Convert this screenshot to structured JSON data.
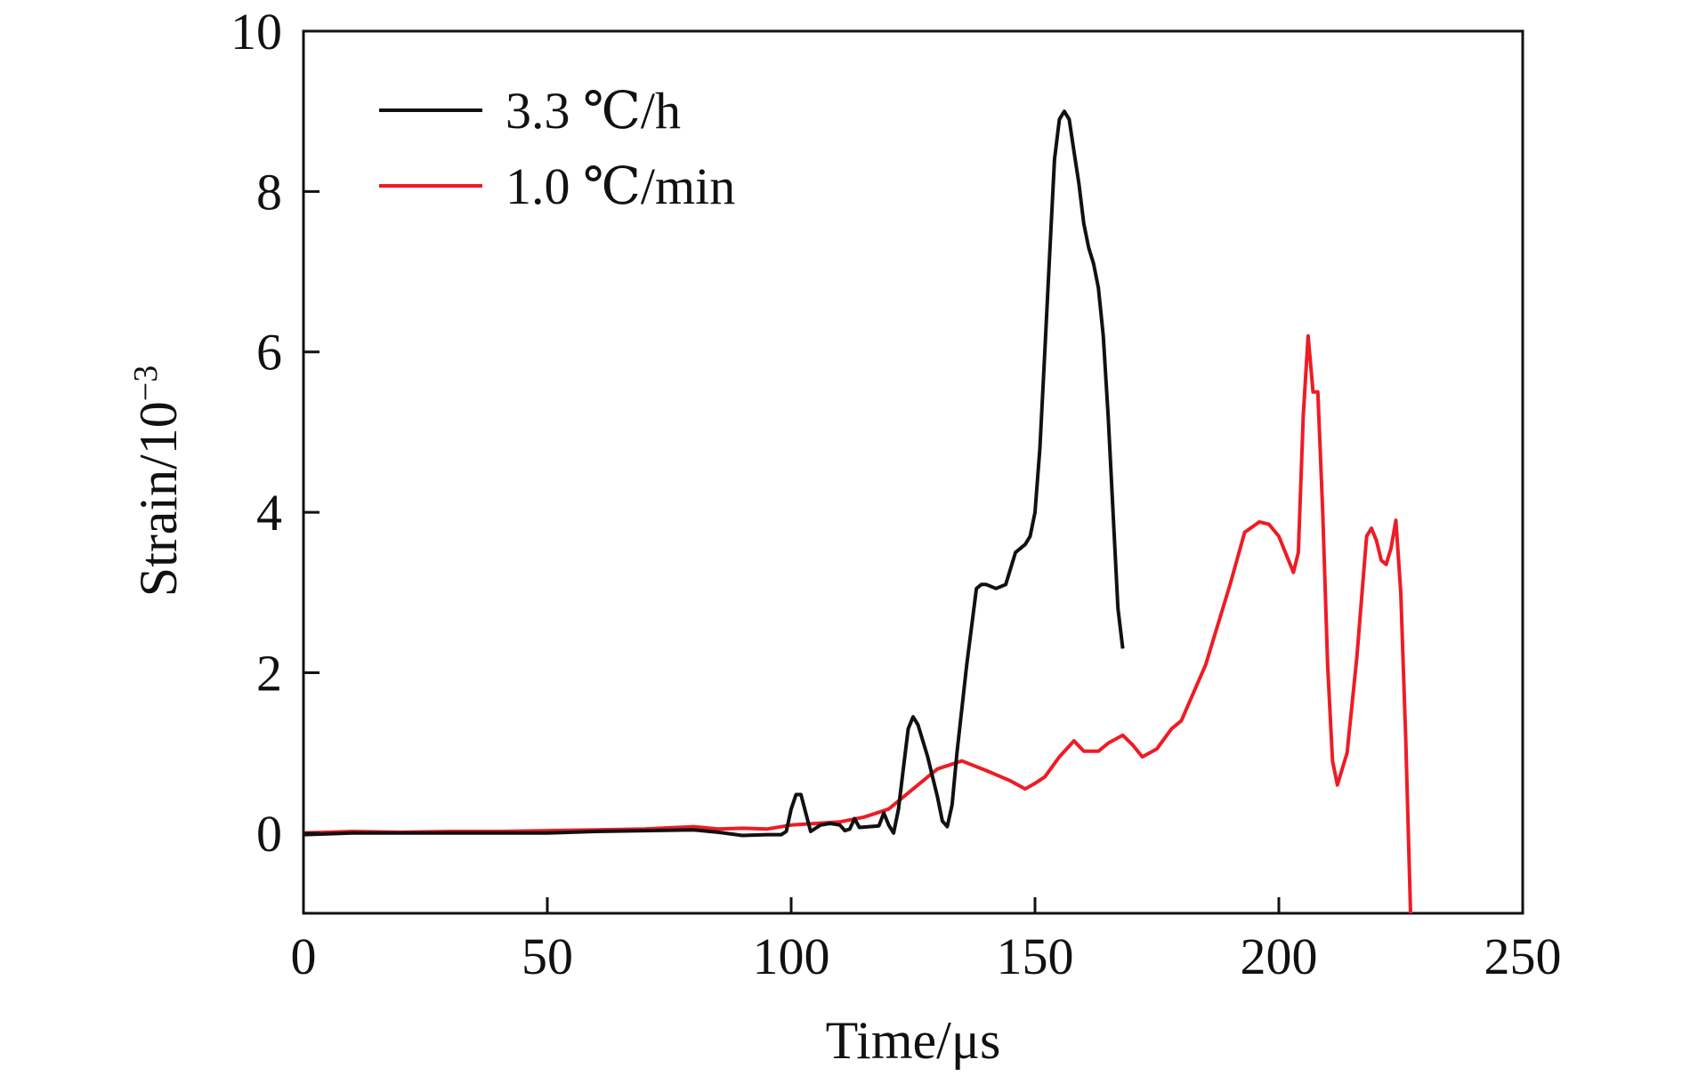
{
  "chart_data": {
    "type": "line",
    "title": "",
    "xlabel": "Time/μs",
    "ylabel": "Strain/10",
    "ylabel_exponent": "−3",
    "xlim": [
      0,
      250
    ],
    "ylim": [
      -1,
      10
    ],
    "xticks": [
      0,
      50,
      100,
      150,
      200,
      250
    ],
    "yticks": [
      0,
      2,
      4,
      6,
      8,
      10
    ],
    "grid": false,
    "legend_position": "top-left",
    "series": [
      {
        "name": "3.3 ℃/h",
        "color": "#111111",
        "x": [
          0,
          10,
          20,
          30,
          40,
          50,
          60,
          70,
          80,
          85,
          90,
          95,
          98,
          99,
          100,
          101,
          102,
          103,
          104,
          106,
          108,
          110,
          111,
          112,
          113,
          114,
          116,
          118,
          119,
          120,
          121,
          122,
          123,
          124,
          125,
          126,
          128,
          130,
          131,
          132,
          133,
          134,
          136,
          138,
          139,
          140,
          142,
          144,
          146,
          148,
          149,
          150,
          151,
          152,
          153,
          154,
          155,
          156,
          157,
          158,
          159,
          160,
          161,
          162,
          163,
          164,
          165,
          166,
          167,
          168
        ],
        "y": [
          -0.02,
          0.0,
          0.0,
          0.0,
          0.0,
          0.0,
          0.02,
          0.03,
          0.04,
          0.01,
          -0.03,
          -0.02,
          -0.02,
          0.02,
          0.3,
          0.48,
          0.48,
          0.25,
          0.02,
          0.1,
          0.12,
          0.1,
          0.03,
          0.05,
          0.18,
          0.07,
          0.08,
          0.09,
          0.25,
          0.1,
          0.0,
          0.3,
          0.8,
          1.3,
          1.45,
          1.35,
          0.95,
          0.45,
          0.15,
          0.08,
          0.35,
          1.0,
          2.1,
          3.05,
          3.1,
          3.1,
          3.05,
          3.1,
          3.5,
          3.6,
          3.7,
          4.0,
          4.8,
          6.0,
          7.2,
          8.4,
          8.9,
          9.0,
          8.9,
          8.5,
          8.1,
          7.6,
          7.3,
          7.1,
          6.8,
          6.2,
          5.2,
          4.0,
          2.8,
          2.3
        ]
      },
      {
        "name": "1.0 ℃/min",
        "color": "#ee1c25",
        "x": [
          0,
          10,
          20,
          30,
          40,
          50,
          60,
          70,
          80,
          85,
          90,
          95,
          100,
          105,
          110,
          115,
          120,
          125,
          130,
          135,
          140,
          145,
          148,
          150,
          152,
          155,
          158,
          160,
          163,
          165,
          168,
          170,
          172,
          175,
          178,
          180,
          185,
          190,
          193,
          196,
          198,
          200,
          203,
          204,
          205,
          206,
          207,
          208,
          209,
          210,
          211,
          212,
          213,
          214,
          216,
          218,
          219,
          220,
          221,
          222,
          223,
          224,
          225,
          226,
          227
        ],
        "y": [
          0.0,
          0.02,
          0.01,
          0.02,
          0.02,
          0.03,
          0.04,
          0.05,
          0.08,
          0.05,
          0.06,
          0.05,
          0.1,
          0.12,
          0.14,
          0.2,
          0.3,
          0.55,
          0.8,
          0.9,
          0.78,
          0.65,
          0.55,
          0.62,
          0.7,
          0.95,
          1.15,
          1.02,
          1.02,
          1.12,
          1.22,
          1.1,
          0.95,
          1.05,
          1.3,
          1.4,
          2.1,
          3.1,
          3.75,
          3.88,
          3.85,
          3.7,
          3.25,
          3.5,
          5.2,
          6.2,
          5.5,
          5.5,
          4.0,
          2.1,
          0.9,
          0.6,
          0.8,
          1.0,
          2.2,
          3.7,
          3.8,
          3.65,
          3.4,
          3.35,
          3.55,
          3.9,
          3.0,
          1.2,
          -1.0
        ]
      }
    ]
  }
}
